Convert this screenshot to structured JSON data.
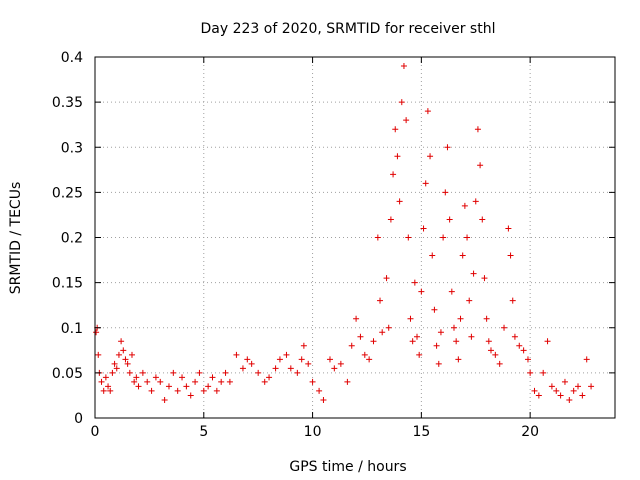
{
  "chart_data": {
    "type": "scatter",
    "title": "Day 223 of 2020, SRMTID for receiver sthl",
    "xlabel": "GPS time / hours",
    "ylabel": "SRMTID / TECUs",
    "xlim": [
      0,
      23.9
    ],
    "ylim": [
      0,
      0.4
    ],
    "x_ticks": [
      0,
      5,
      10,
      15,
      20
    ],
    "y_ticks": [
      0,
      0.05,
      0.1,
      0.15,
      0.2,
      0.25,
      0.3,
      0.35,
      0.4
    ],
    "x_tick_labels": [
      "0",
      "5",
      "10",
      "15",
      "20"
    ],
    "y_tick_labels": [
      "0",
      "0.05",
      "0.1",
      "0.15",
      "0.2",
      "0.25",
      "0.3",
      "0.35",
      "0.4"
    ],
    "grid": true,
    "marker": "+",
    "color": "#e00000",
    "series": [
      {
        "name": "SRMTID",
        "points": [
          [
            0.05,
            0.095
          ],
          [
            0.1,
            0.1
          ],
          [
            0.15,
            0.07
          ],
          [
            0.2,
            0.05
          ],
          [
            0.3,
            0.04
          ],
          [
            0.4,
            0.03
          ],
          [
            0.5,
            0.045
          ],
          [
            0.6,
            0.035
          ],
          [
            0.7,
            0.03
          ],
          [
            0.8,
            0.05
          ],
          [
            0.9,
            0.06
          ],
          [
            1.0,
            0.055
          ],
          [
            1.1,
            0.07
          ],
          [
            1.2,
            0.085
          ],
          [
            1.3,
            0.075
          ],
          [
            1.4,
            0.065
          ],
          [
            1.5,
            0.06
          ],
          [
            1.6,
            0.05
          ],
          [
            1.7,
            0.07
          ],
          [
            1.8,
            0.04
          ],
          [
            1.9,
            0.045
          ],
          [
            2.0,
            0.035
          ],
          [
            2.2,
            0.05
          ],
          [
            2.4,
            0.04
          ],
          [
            2.6,
            0.03
          ],
          [
            2.8,
            0.045
          ],
          [
            3.0,
            0.04
          ],
          [
            3.2,
            0.02
          ],
          [
            3.4,
            0.035
          ],
          [
            3.6,
            0.05
          ],
          [
            3.8,
            0.03
          ],
          [
            4.0,
            0.045
          ],
          [
            4.2,
            0.035
          ],
          [
            4.4,
            0.025
          ],
          [
            4.6,
            0.04
          ],
          [
            4.8,
            0.05
          ],
          [
            5.0,
            0.03
          ],
          [
            5.2,
            0.035
          ],
          [
            5.4,
            0.045
          ],
          [
            5.6,
            0.03
          ],
          [
            5.8,
            0.04
          ],
          [
            6.0,
            0.05
          ],
          [
            6.2,
            0.04
          ],
          [
            6.5,
            0.07
          ],
          [
            6.8,
            0.055
          ],
          [
            7.0,
            0.065
          ],
          [
            7.2,
            0.06
          ],
          [
            7.5,
            0.05
          ],
          [
            7.8,
            0.04
          ],
          [
            8.0,
            0.045
          ],
          [
            8.3,
            0.055
          ],
          [
            8.5,
            0.065
          ],
          [
            8.8,
            0.07
          ],
          [
            9.0,
            0.055
          ],
          [
            9.3,
            0.05
          ],
          [
            9.5,
            0.065
          ],
          [
            9.6,
            0.08
          ],
          [
            9.8,
            0.06
          ],
          [
            10.0,
            0.04
          ],
          [
            10.3,
            0.03
          ],
          [
            10.5,
            0.02
          ],
          [
            10.8,
            0.065
          ],
          [
            11.0,
            0.055
          ],
          [
            11.3,
            0.06
          ],
          [
            11.6,
            0.04
          ],
          [
            11.8,
            0.08
          ],
          [
            12.0,
            0.11
          ],
          [
            12.2,
            0.09
          ],
          [
            12.4,
            0.07
          ],
          [
            12.6,
            0.065
          ],
          [
            12.8,
            0.085
          ],
          [
            13.0,
            0.2
          ],
          [
            13.1,
            0.13
          ],
          [
            13.2,
            0.095
          ],
          [
            13.4,
            0.155
          ],
          [
            13.5,
            0.1
          ],
          [
            13.6,
            0.22
          ],
          [
            13.7,
            0.27
          ],
          [
            13.8,
            0.32
          ],
          [
            13.9,
            0.29
          ],
          [
            14.0,
            0.24
          ],
          [
            14.1,
            0.35
          ],
          [
            14.2,
            0.39
          ],
          [
            14.3,
            0.33
          ],
          [
            14.4,
            0.2
          ],
          [
            14.5,
            0.11
          ],
          [
            14.6,
            0.085
          ],
          [
            14.7,
            0.15
          ],
          [
            14.8,
            0.09
          ],
          [
            14.9,
            0.07
          ],
          [
            15.0,
            0.14
          ],
          [
            15.1,
            0.21
          ],
          [
            15.2,
            0.26
          ],
          [
            15.3,
            0.34
          ],
          [
            15.4,
            0.29
          ],
          [
            15.5,
            0.18
          ],
          [
            15.6,
            0.12
          ],
          [
            15.7,
            0.08
          ],
          [
            15.8,
            0.06
          ],
          [
            15.9,
            0.095
          ],
          [
            16.0,
            0.2
          ],
          [
            16.1,
            0.25
          ],
          [
            16.2,
            0.3
          ],
          [
            16.3,
            0.22
          ],
          [
            16.4,
            0.14
          ],
          [
            16.5,
            0.1
          ],
          [
            16.6,
            0.085
          ],
          [
            16.7,
            0.065
          ],
          [
            16.8,
            0.11
          ],
          [
            16.9,
            0.18
          ],
          [
            17.0,
            0.235
          ],
          [
            17.1,
            0.2
          ],
          [
            17.2,
            0.13
          ],
          [
            17.3,
            0.09
          ],
          [
            17.4,
            0.16
          ],
          [
            17.5,
            0.24
          ],
          [
            17.6,
            0.32
          ],
          [
            17.7,
            0.28
          ],
          [
            17.8,
            0.22
          ],
          [
            17.9,
            0.155
          ],
          [
            18.0,
            0.11
          ],
          [
            18.1,
            0.085
          ],
          [
            18.2,
            0.075
          ],
          [
            18.4,
            0.07
          ],
          [
            18.6,
            0.06
          ],
          [
            18.8,
            0.1
          ],
          [
            19.0,
            0.21
          ],
          [
            19.1,
            0.18
          ],
          [
            19.2,
            0.13
          ],
          [
            19.3,
            0.09
          ],
          [
            19.5,
            0.08
          ],
          [
            19.7,
            0.075
          ],
          [
            19.9,
            0.065
          ],
          [
            20.0,
            0.05
          ],
          [
            20.2,
            0.03
          ],
          [
            20.4,
            0.025
          ],
          [
            20.6,
            0.05
          ],
          [
            20.8,
            0.085
          ],
          [
            21.0,
            0.035
          ],
          [
            21.2,
            0.03
          ],
          [
            21.4,
            0.025
          ],
          [
            21.6,
            0.04
          ],
          [
            21.8,
            0.02
          ],
          [
            22.0,
            0.03
          ],
          [
            22.2,
            0.035
          ],
          [
            22.4,
            0.025
          ],
          [
            22.6,
            0.065
          ],
          [
            22.8,
            0.035
          ]
        ]
      }
    ]
  }
}
